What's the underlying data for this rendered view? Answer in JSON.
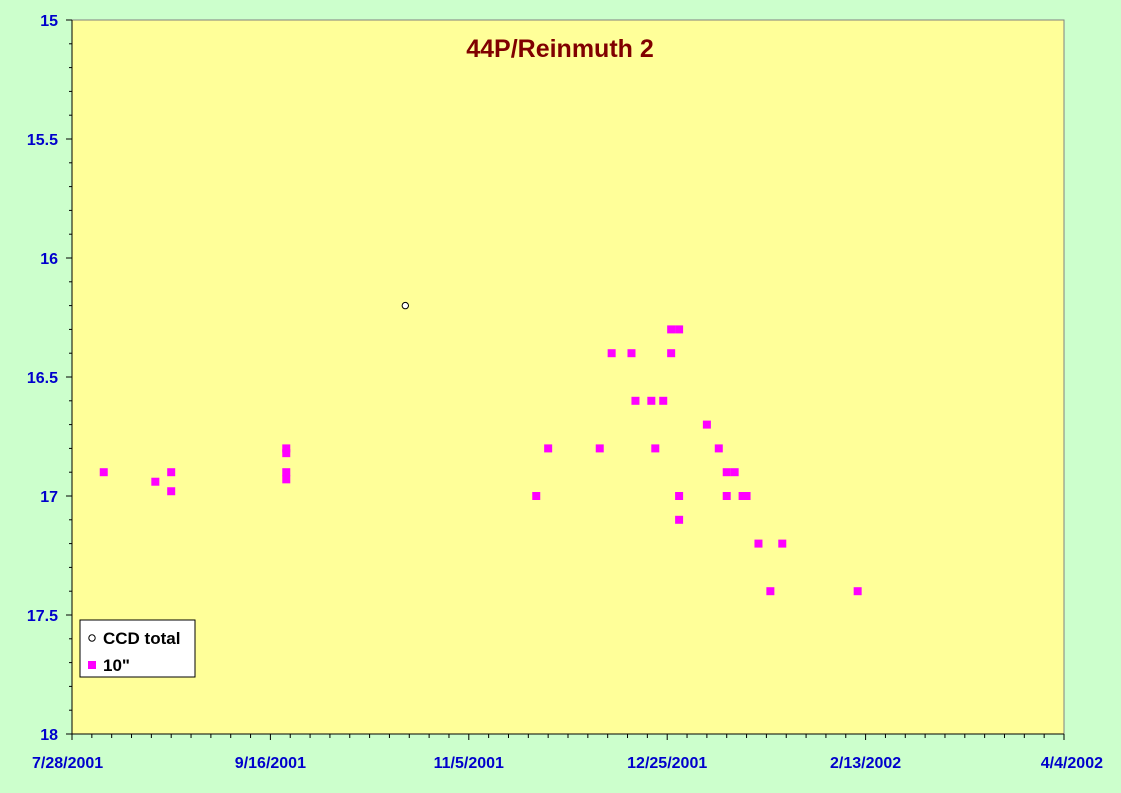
{
  "colors": {
    "page_background": "#ccffcc",
    "plot_background": "#ffff99",
    "axis_text": "#0000cc",
    "title": "#800000",
    "series_10in": "#ff00ff",
    "series_ccd": "#000000"
  },
  "chart_data": {
    "type": "scatter",
    "title": "44P/Reinmuth 2",
    "xlabel": "",
    "ylabel": "",
    "x_is_date": true,
    "xlim": [
      "2001-07-28",
      "2002-04-04"
    ],
    "ylim": [
      15,
      18
    ],
    "y_inverted": true,
    "x_tick_labels": [
      "7/28/2001",
      "9/16/2001",
      "11/5/2001",
      "12/25/2001",
      "2/13/2002",
      "4/4/2002"
    ],
    "y_tick_labels": [
      "15",
      "15.5",
      "16",
      "16.5",
      "17",
      "17.5",
      "18"
    ],
    "grid": false,
    "legend_position": "bottom-left",
    "series": [
      {
        "name": "CCD total",
        "marker": "open-circle",
        "color": "#000000",
        "points": [
          {
            "x": "2001-10-20",
            "y": 16.2
          }
        ]
      },
      {
        "name": "10\"",
        "marker": "square",
        "color": "#ff00ff",
        "points": [
          {
            "x": "2001-08-05",
            "y": 16.9
          },
          {
            "x": "2001-08-18",
            "y": 16.94
          },
          {
            "x": "2001-08-22",
            "y": 16.9
          },
          {
            "x": "2001-08-22",
            "y": 16.98
          },
          {
            "x": "2001-09-20",
            "y": 16.8
          },
          {
            "x": "2001-09-20",
            "y": 16.82
          },
          {
            "x": "2001-09-20",
            "y": 16.9
          },
          {
            "x": "2001-09-20",
            "y": 16.93
          },
          {
            "x": "2001-11-22",
            "y": 17.0
          },
          {
            "x": "2001-11-25",
            "y": 16.8
          },
          {
            "x": "2001-12-08",
            "y": 16.8
          },
          {
            "x": "2001-12-11",
            "y": 16.4
          },
          {
            "x": "2001-12-16",
            "y": 16.4
          },
          {
            "x": "2001-12-17",
            "y": 16.6
          },
          {
            "x": "2001-12-21",
            "y": 16.6
          },
          {
            "x": "2001-12-22",
            "y": 16.8
          },
          {
            "x": "2001-12-24",
            "y": 16.6
          },
          {
            "x": "2001-12-26",
            "y": 16.4
          },
          {
            "x": "2001-12-26",
            "y": 16.3
          },
          {
            "x": "2001-12-28",
            "y": 16.3
          },
          {
            "x": "2001-12-28",
            "y": 17.0
          },
          {
            "x": "2001-12-28",
            "y": 17.1
          },
          {
            "x": "2002-01-04",
            "y": 16.7
          },
          {
            "x": "2002-01-07",
            "y": 16.8
          },
          {
            "x": "2002-01-09",
            "y": 16.9
          },
          {
            "x": "2002-01-09",
            "y": 17.0
          },
          {
            "x": "2002-01-11",
            "y": 16.9
          },
          {
            "x": "2002-01-13",
            "y": 17.0
          },
          {
            "x": "2002-01-14",
            "y": 17.0
          },
          {
            "x": "2002-01-17",
            "y": 17.2
          },
          {
            "x": "2002-01-20",
            "y": 17.4
          },
          {
            "x": "2002-01-23",
            "y": 17.2
          },
          {
            "x": "2002-02-11",
            "y": 17.4
          }
        ]
      }
    ]
  }
}
